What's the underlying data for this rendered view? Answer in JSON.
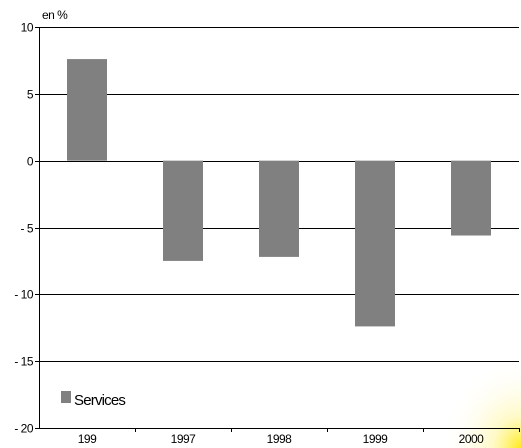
{
  "chart_data": {
    "type": "bar",
    "unit_label": "en %",
    "categories": [
      "199",
      "1997",
      "1998",
      "1999",
      "2000"
    ],
    "series": [
      {
        "name": "Services",
        "values": [
          7.6,
          -7.5,
          -7.2,
          -12.4,
          -5.6
        ],
        "color": "#808080"
      }
    ],
    "ylim": [
      -20,
      10
    ],
    "yticks": [
      10,
      5,
      0,
      -5,
      -10,
      -15,
      -20
    ],
    "ytick_labels": [
      "10",
      "5",
      "0",
      "- 5",
      "- 10",
      "- 15",
      "- 20"
    ],
    "grid": true,
    "legend": "bottom-left",
    "background_glow_color": "#fff3a0"
  }
}
